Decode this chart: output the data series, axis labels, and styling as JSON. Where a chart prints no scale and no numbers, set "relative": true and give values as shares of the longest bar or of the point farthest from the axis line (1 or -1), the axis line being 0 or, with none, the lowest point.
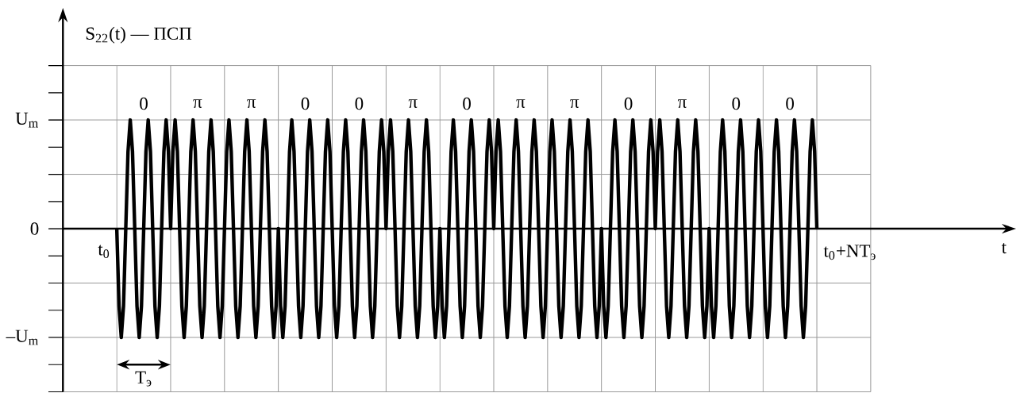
{
  "chart_data": {
    "type": "line",
    "ylabel": "S$_{22}$(t) — ПСП",
    "categories": [
      null,
      null,
      null,
      null,
      null,
      null,
      null,
      null,
      null,
      null,
      null,
      null,
      null,
      null,
      null,
      null,
      null,
      null,
      null,
      null,
      null,
      null,
      null,
      null,
      null,
      null,
      null,
      null,
      null,
      null,
      null,
      null,
      null,
      null,
      null,
      null,
      null,
      null,
      null,
      null,
      null,
      null,
      null,
      null,
      null,
      null,
      null,
      null,
      null,
      null,
      null,
      null,
      null,
      null,
      null,
      null,
      null,
      null,
      null,
      null,
      null,
      null,
      null,
      null,
      null,
      null,
      null,
      null,
      null,
      null,
      null,
      null,
      null,
      null,
      null,
      null,
      null,
      null,
      null,
      null,
      null,
      null,
      null,
      null,
      null,
      null,
      null,
      null,
      null,
      null,
      null,
      null,
      null,
      null,
      null,
      null,
      null,
      null,
      null,
      null,
      null,
      null,
      null,
      null,
      null,
      null,
      null,
      null,
      null,
      null,
      null,
      null,
      null,
      null,
      null,
      null,
      null,
      null,
      null,
      null,
      null,
      null,
      null,
      null,
      null,
      null,
      null,
      null,
      null,
      null,
      null,
      null,
      null,
      null,
      null,
      null,
      null,
      null,
      null,
      null,
      null,
      null,
      null,
      null,
      null,
      null,
      null,
      null,
      null,
      null,
      null,
      null,
      null,
      null,
      null,
      null,
      null,
      null,
      null,
      null,
      null,
      null,
      null,
      null,
      null,
      null,
      null,
      null,
      null,
      null,
      null,
      null,
      null,
      null,
      null,
      null,
      null,
      null,
      null,
      null,
      null,
      null,
      null,
      null,
      null,
      null,
      null,
      null,
      null,
      null,
      null,
      null,
      null,
      null,
      null,
      null,
      null,
      null,
      null,
      null,
      null,
      null,
      null,
      null,
      null,
      null,
      null,
      null,
      null,
      null,
      null,
      null,
      null,
      null,
      null,
      null,
      null,
      null,
      null,
      null,
      null,
      null,
      null,
      null,
      null,
      null,
      null,
      null,
      null,
      null,
      null,
      null,
      null,
      null,
      null,
      null,
      null,
      null,
      null,
      null,
      null,
      null,
      null,
      null,
      null,
      null,
      null,
      null,
      null,
      null,
      null,
      null,
      null,
      null,
      null,
      null,
      null,
      null,
      null,
      null,
      null,
      null,
      null,
      null,
      null,
      null,
      null,
      null,
      null,
      null,
      null,
      null,
      null,
      null,
      null,
      null,
      null,
      null,
      null,
      null,
      null,
      null,
      null,
      null,
      null,
      null,
      null,
      null,
      null,
      null,
      null,
      null,
      null,
      null,
      null,
      null,
      null,
      null,
      null,
      null,
      null,
      null,
      null,
      null,
      null,
      null,
      null,
      null,
      null,
      null,
      null,
      null,
      null
    ],
    "series": [
      {
        "color": "#000000",
        "values": [
          0,
          -0.71,
          -1,
          -0.71,
          0,
          0.71,
          1,
          0.71,
          0,
          -0.71,
          -1,
          -0.71,
          0,
          0.71,
          1,
          0.71,
          0,
          -0.71,
          -1,
          -0.71,
          0,
          0.71,
          1,
          0.71,
          0,
          0.71,
          1,
          0.71,
          0,
          -0.71,
          -1,
          -0.71,
          0,
          0.71,
          1,
          0.71,
          0,
          -0.71,
          -1,
          -0.71,
          0,
          0.71,
          1,
          0.71,
          0,
          -0.71,
          -1,
          -0.71,
          0,
          0.71,
          1,
          0.71,
          0,
          -0.71,
          -1,
          -0.71,
          0,
          0.71,
          1,
          0.71,
          0,
          -0.71,
          -1,
          -0.71,
          0,
          0.71,
          1,
          0.71,
          0,
          -0.71,
          -1,
          -0.71,
          0,
          -0.71,
          -1,
          -0.71,
          0,
          0.71,
          1,
          0.71,
          0,
          -0.71,
          -1,
          -0.71,
          0,
          0.71,
          1,
          0.71,
          0,
          -0.71,
          -1,
          -0.71,
          0,
          0.71,
          1,
          0.71,
          0,
          -0.71,
          -1,
          -0.71,
          0,
          0.71,
          1,
          0.71,
          0,
          -0.71,
          -1,
          -0.71,
          0,
          0.71,
          1,
          0.71,
          0,
          -0.71,
          -1,
          -0.71,
          0,
          0.71,
          1,
          0.71,
          0,
          0.71,
          1,
          0.71,
          0,
          -0.71,
          -1,
          -0.71,
          0,
          0.71,
          1,
          0.71,
          0,
          -0.71,
          -1,
          -0.71,
          0,
          0.71,
          1,
          0.71,
          0,
          -0.71,
          -1,
          -0.71,
          0,
          -0.71,
          -1,
          -0.71,
          0,
          0.71,
          1,
          0.71,
          0,
          -0.71,
          -1,
          -0.71,
          0,
          0.71,
          1,
          0.71,
          0,
          -0.71,
          -1,
          -0.71,
          0,
          0.71,
          1,
          0.71,
          0,
          0.71,
          1,
          0.71,
          0,
          -0.71,
          -1,
          -0.71,
          0,
          0.71,
          1,
          0.71,
          0,
          -0.71,
          -1,
          -0.71,
          0,
          0.71,
          1,
          0.71,
          0,
          -0.71,
          -1,
          -0.71,
          0,
          0.71,
          1,
          0.71,
          0,
          -0.71,
          -1,
          -0.71,
          0,
          0.71,
          1,
          0.71,
          0,
          -0.71,
          -1,
          -0.71,
          0,
          0.71,
          1,
          0.71,
          0,
          -0.71,
          -1,
          -0.71,
          0,
          -0.71,
          -1,
          -0.71,
          0,
          0.71,
          1,
          0.71,
          0,
          -0.71,
          -1,
          -0.71,
          0,
          0.71,
          1,
          0.71,
          0,
          -0.71,
          -1,
          -0.71,
          0,
          0.71,
          1,
          0.71,
          0,
          0.71,
          1,
          0.71,
          0,
          -0.71,
          -1,
          -0.71,
          0,
          0.71,
          1,
          0.71,
          0,
          -0.71,
          -1,
          -0.71,
          0,
          0.71,
          1,
          0.71,
          0,
          -0.71,
          -1,
          -0.71,
          0,
          -0.71,
          -1,
          -0.71,
          0,
          0.71,
          1,
          0.71,
          0,
          -0.71,
          -1,
          -0.71,
          0,
          0.71,
          1,
          0.71,
          0,
          -0.71,
          -1,
          -0.71,
          0,
          0.71,
          1,
          0.71,
          0,
          -0.71,
          -1,
          -0.71,
          0,
          0.71,
          1,
          0.71,
          0,
          -0.71,
          -1,
          -0.71,
          0,
          0.71,
          1,
          0.71,
          0,
          -0.71,
          -1,
          -0.71,
          0,
          0.71,
          1,
          0.71,
          0
        ]
      }
    ],
    "relative": true,
    "grid": true,
    "marker": "none",
    "line_style": "solid",
    "annotations": [
      "t$_{0}$",
      "t$_{0}$+NT$_{э}$",
      "T$_{э}$",
      "t",
      "0",
      "π",
      "π",
      "0",
      "0",
      "π",
      "0",
      "π",
      "π",
      "0",
      "π",
      "0",
      "0",
      "U$_{m}$",
      "0",
      "–U$_{m}$"
    ]
  }
}
